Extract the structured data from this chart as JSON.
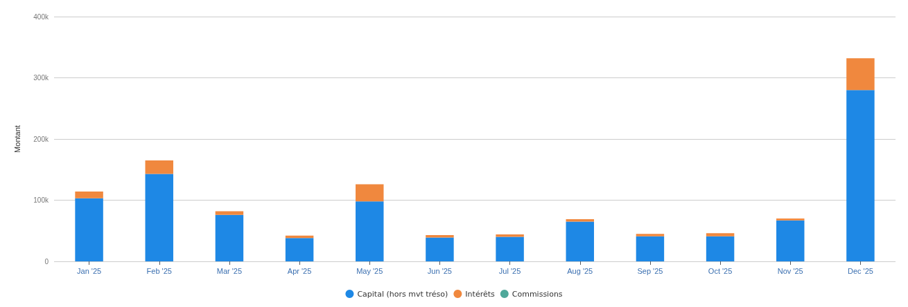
{
  "chart_data": {
    "type": "bar",
    "stacked": true,
    "ylabel": "Montant",
    "categories": [
      "Jan '25",
      "Feb '25",
      "Mar '25",
      "Apr '25",
      "May '25",
      "Jun '25",
      "Jul '25",
      "Aug '25",
      "Sep '25",
      "Oct '25",
      "Nov '25",
      "Dec '25"
    ],
    "series": [
      {
        "name": "Capital (hors mvt tréso)",
        "color": "#1e88e5",
        "values": [
          103000,
          143000,
          76000,
          38000,
          98000,
          39000,
          40000,
          65000,
          41000,
          41000,
          67000,
          280000
        ]
      },
      {
        "name": "Intérêts",
        "color": "#f0883e",
        "values": [
          11000,
          22000,
          6000,
          4000,
          28000,
          4000,
          4000,
          4000,
          4000,
          5000,
          3000,
          52000
        ]
      },
      {
        "name": "Commissions",
        "color": "#4fa89a",
        "values": [
          0,
          0,
          0,
          0,
          0,
          0,
          0,
          0,
          0,
          0,
          0,
          0
        ]
      }
    ],
    "ylim": [
      0,
      400000
    ],
    "yticks": [
      0,
      {
        "value": 100000,
        "label": "100k"
      },
      {
        "value": 200000,
        "label": "200k"
      },
      {
        "value": 300000,
        "label": "300k"
      },
      {
        "value": 400000,
        "label": "400k"
      }
    ],
    "grid": "y",
    "legend": "bottom"
  }
}
